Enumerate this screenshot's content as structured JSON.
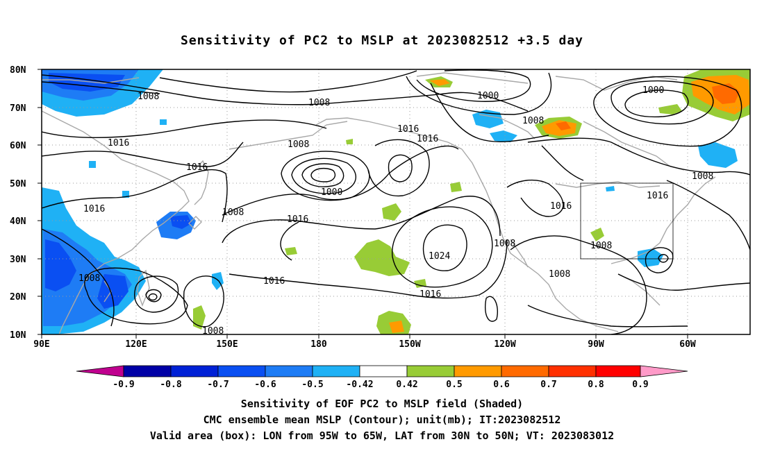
{
  "title": "Sensitivity of PC2 to MSLP at 2023082512 +3.5 day",
  "map": {
    "lat_labels": [
      "80N",
      "70N",
      "60N",
      "50N",
      "40N",
      "30N",
      "20N",
      "10N"
    ],
    "lon_labels": [
      "90E",
      "120E",
      "150E",
      "180",
      "150W",
      "120W",
      "90W",
      "60W"
    ],
    "contour_labels": [
      {
        "text": "1008"
      },
      {
        "text": "1008"
      },
      {
        "text": "1000"
      },
      {
        "text": "1000"
      },
      {
        "text": "1016"
      },
      {
        "text": "1016"
      },
      {
        "text": "1008"
      },
      {
        "text": "1016"
      },
      {
        "text": "1016"
      },
      {
        "text": "1008"
      },
      {
        "text": "1000"
      },
      {
        "text": "1016"
      },
      {
        "text": "1008"
      },
      {
        "text": "1016"
      },
      {
        "text": "1024"
      },
      {
        "text": "1008"
      },
      {
        "text": "1016"
      },
      {
        "text": "1016"
      },
      {
        "text": "1016"
      },
      {
        "text": "1008"
      },
      {
        "text": "1008"
      },
      {
        "text": "1008"
      },
      {
        "text": "1008"
      },
      {
        "text": "1008"
      }
    ],
    "valid_box": {
      "lon_from": "95W",
      "lon_to": "65W",
      "lat_from": "30N",
      "lat_to": "50N"
    }
  },
  "colorbar": {
    "ticks": [
      "-0.9",
      "-0.8",
      "-0.7",
      "-0.6",
      "-0.5",
      "-0.42",
      "0.42",
      "0.5",
      "0.6",
      "0.7",
      "0.8",
      "0.9"
    ],
    "colors": [
      "#c0008f",
      "#0000a6",
      "#0021d6",
      "#0a4ff2",
      "#1e7cf5",
      "#1fb1f5",
      "#00cdf7",
      "#ffffff",
      "#98cc36",
      "#ff9a00",
      "#ff6a00",
      "#ff3000",
      "#ff0000",
      "#ff9ac8"
    ]
  },
  "captions": {
    "line1": "Sensitivity of EOF PC2 to MSLP field (Shaded)",
    "line2": "CMC ensemble mean MSLP (Contour); unit(mb); IT:2023082512",
    "line3": "Valid area (box): LON from 95W to 65W, LAT from 30N to 50N; VT: 2023083012"
  }
}
